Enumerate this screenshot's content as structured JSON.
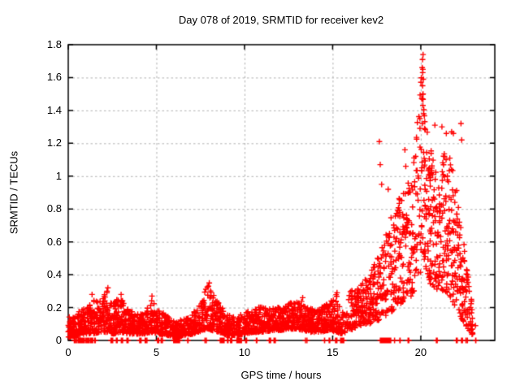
{
  "chart_data": {
    "type": "scatter",
    "title": "Day 078 of 2019, SRMTID for receiver kev2",
    "xlabel": "GPS time / hours",
    "ylabel": "SRMTID / TECUs",
    "xlim": [
      0,
      24.2
    ],
    "ylim": [
      0,
      1.8
    ],
    "x_ticks": [
      0,
      5,
      10,
      15,
      20
    ],
    "x_tick_labels": [
      "0",
      "5",
      "10",
      "15",
      "20"
    ],
    "y_ticks": [
      0,
      0.2,
      0.4,
      0.6,
      0.8,
      1.0,
      1.2,
      1.4,
      1.6,
      1.8
    ],
    "y_tick_labels": [
      "0",
      "0.2",
      "0.4",
      "0.6",
      "0.8",
      "1",
      "1.2",
      "1.4",
      "1.6",
      "1.8"
    ],
    "grid": true,
    "grid_color": "#b0b0b0",
    "frame_color": "#000000",
    "marker": {
      "shape": "plus",
      "color": "#ff0000",
      "size": 7
    },
    "seed": 42,
    "skew_split_hour": 16,
    "band_envelope": [
      [
        0.0,
        0.02,
        0.14,
        130
      ],
      [
        0.5,
        0.03,
        0.17,
        130
      ],
      [
        1.0,
        0.04,
        0.2,
        130
      ],
      [
        1.4,
        0.04,
        0.24,
        130
      ],
      [
        1.8,
        0.05,
        0.27,
        130
      ],
      [
        2.2,
        0.05,
        0.3,
        130
      ],
      [
        2.6,
        0.04,
        0.24,
        130
      ],
      [
        3.0,
        0.05,
        0.26,
        130
      ],
      [
        3.4,
        0.04,
        0.2,
        125
      ],
      [
        3.8,
        0.04,
        0.16,
        125
      ],
      [
        4.3,
        0.04,
        0.16,
        125
      ],
      [
        4.7,
        0.05,
        0.25,
        125
      ],
      [
        5.1,
        0.04,
        0.19,
        120
      ],
      [
        5.6,
        0.03,
        0.15,
        110
      ],
      [
        6.1,
        0.02,
        0.12,
        105
      ],
      [
        6.6,
        0.03,
        0.13,
        110
      ],
      [
        7.1,
        0.04,
        0.17,
        120
      ],
      [
        7.6,
        0.06,
        0.26,
        130
      ],
      [
        7.9,
        0.07,
        0.34,
        130
      ],
      [
        8.2,
        0.06,
        0.29,
        130
      ],
      [
        8.6,
        0.05,
        0.22,
        120
      ],
      [
        9.0,
        0.03,
        0.16,
        100
      ],
      [
        9.5,
        0.03,
        0.14,
        95
      ],
      [
        10.0,
        0.04,
        0.17,
        120
      ],
      [
        10.5,
        0.05,
        0.19,
        125
      ],
      [
        11.0,
        0.05,
        0.21,
        130
      ],
      [
        11.5,
        0.06,
        0.2,
        130
      ],
      [
        12.0,
        0.06,
        0.21,
        130
      ],
      [
        12.5,
        0.07,
        0.23,
        130
      ],
      [
        13.0,
        0.07,
        0.25,
        130
      ],
      [
        13.4,
        0.06,
        0.24,
        130
      ],
      [
        13.8,
        0.05,
        0.19,
        125
      ],
      [
        14.3,
        0.05,
        0.2,
        125
      ],
      [
        14.8,
        0.06,
        0.23,
        120
      ],
      [
        15.2,
        0.05,
        0.28,
        110
      ],
      [
        15.5,
        0.04,
        0.2,
        60
      ],
      [
        16.0,
        0.06,
        0.3,
        110
      ],
      [
        16.4,
        0.08,
        0.33,
        120
      ],
      [
        16.8,
        0.1,
        0.37,
        120
      ],
      [
        17.2,
        0.1,
        0.43,
        110
      ],
      [
        17.6,
        0.12,
        0.52,
        100
      ],
      [
        18.0,
        0.15,
        0.65,
        100
      ],
      [
        18.4,
        0.18,
        0.8,
        110
      ],
      [
        18.8,
        0.22,
        0.87,
        110
      ],
      [
        19.2,
        0.25,
        0.95,
        105
      ],
      [
        19.6,
        0.28,
        1.15,
        105
      ],
      [
        19.9,
        0.35,
        1.42,
        110
      ],
      [
        20.05,
        0.45,
        1.68,
        150
      ],
      [
        20.25,
        0.4,
        1.3,
        125
      ],
      [
        20.5,
        0.35,
        1.25,
        125
      ],
      [
        20.8,
        0.32,
        1.05,
        125
      ],
      [
        21.1,
        0.3,
        1.0,
        125
      ],
      [
        21.35,
        0.3,
        1.25,
        115
      ],
      [
        21.6,
        0.28,
        1.15,
        115
      ],
      [
        21.9,
        0.22,
        1.0,
        115
      ],
      [
        22.2,
        0.15,
        0.85,
        125
      ],
      [
        22.45,
        0.1,
        0.6,
        115
      ],
      [
        22.7,
        0.05,
        0.38,
        95
      ],
      [
        22.95,
        0.03,
        0.2,
        0
      ]
    ],
    "axis_zero_clusters": [
      [
        0.3,
        0.5,
        6
      ],
      [
        0.55,
        0.95,
        22
      ],
      [
        1.0,
        1.2,
        6
      ],
      [
        1.25,
        1.4,
        5
      ],
      [
        1.5,
        1.6,
        3
      ],
      [
        2.4,
        2.55,
        5
      ],
      [
        2.7,
        2.8,
        3
      ],
      [
        3.0,
        3.15,
        4
      ],
      [
        3.3,
        3.4,
        3
      ],
      [
        4.05,
        4.2,
        4
      ],
      [
        4.35,
        4.5,
        4
      ],
      [
        5.05,
        5.15,
        3
      ],
      [
        5.25,
        5.35,
        3
      ],
      [
        5.95,
        6.35,
        30
      ],
      [
        6.75,
        6.8,
        2
      ],
      [
        7.75,
        7.85,
        3
      ],
      [
        8.6,
        8.9,
        20
      ],
      [
        9.0,
        9.1,
        4
      ],
      [
        9.2,
        9.3,
        3
      ],
      [
        9.55,
        9.85,
        18
      ],
      [
        10.05,
        10.15,
        4
      ],
      [
        10.65,
        10.75,
        3
      ],
      [
        11.4,
        11.5,
        3
      ],
      [
        11.65,
        11.75,
        3
      ],
      [
        13.45,
        13.55,
        3
      ],
      [
        14.5,
        14.6,
        3
      ],
      [
        14.75,
        14.85,
        3
      ],
      [
        15.15,
        15.25,
        3
      ],
      [
        15.45,
        15.65,
        14
      ],
      [
        17.7,
        18.3,
        40
      ],
      [
        18.5,
        18.6,
        3
      ],
      [
        18.75,
        18.85,
        3
      ],
      [
        19.25,
        19.35,
        3
      ],
      [
        20.85,
        20.95,
        6
      ],
      [
        22.0,
        22.1,
        3
      ],
      [
        22.3,
        22.4,
        3
      ],
      [
        22.55,
        22.65,
        3
      ],
      [
        23.05,
        23.15,
        2
      ]
    ],
    "outliers": [
      [
        20.13,
        1.74
      ],
      [
        20.1,
        1.71
      ],
      [
        20.08,
        1.66
      ],
      [
        20.12,
        1.65
      ],
      [
        20.11,
        1.63
      ],
      [
        20.14,
        1.59
      ],
      [
        20.1,
        1.55
      ],
      [
        20.13,
        1.5
      ],
      [
        20.09,
        1.47
      ],
      [
        20.12,
        1.43
      ],
      [
        20.16,
        1.38
      ],
      [
        19.95,
        1.35
      ],
      [
        20.1,
        1.32
      ],
      [
        20.22,
        1.29
      ],
      [
        20.8,
        1.31
      ],
      [
        21.2,
        1.3
      ],
      [
        21.45,
        1.26
      ],
      [
        21.75,
        1.27
      ],
      [
        21.85,
        1.26
      ],
      [
        22.28,
        1.32
      ],
      [
        22.32,
        1.22
      ],
      [
        19.1,
        1.16
      ],
      [
        19.15,
        1.06
      ],
      [
        17.65,
        1.21
      ],
      [
        17.7,
        1.07
      ],
      [
        17.78,
        0.95
      ],
      [
        18.15,
        0.92
      ],
      [
        23.1,
        0.09
      ],
      [
        8.0,
        0.35
      ],
      [
        7.95,
        0.33
      ],
      [
        2.25,
        0.32
      ],
      [
        2.2,
        0.3
      ],
      [
        1.35,
        0.28
      ],
      [
        3.0,
        0.28
      ],
      [
        4.75,
        0.27
      ],
      [
        13.3,
        0.26
      ],
      [
        15.25,
        0.29
      ]
    ]
  }
}
